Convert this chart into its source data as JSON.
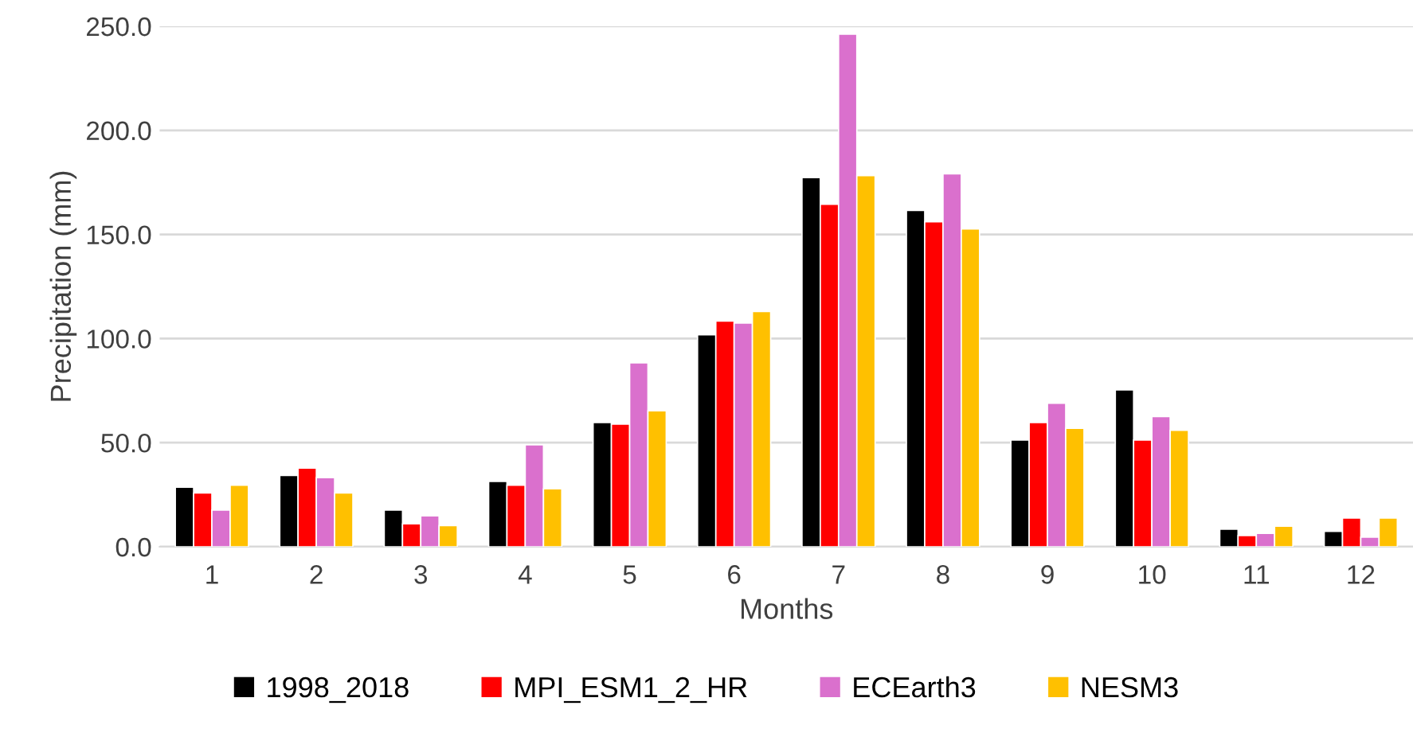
{
  "chart_data": {
    "type": "bar",
    "xlabel": "Months",
    "ylabel": "Precipitation (mm)",
    "categories": [
      "1",
      "2",
      "3",
      "4",
      "5",
      "6",
      "7",
      "8",
      "9",
      "10",
      "11",
      "12"
    ],
    "series": [
      {
        "name": "1998_2018",
        "color": "#000000",
        "values": [
          28.6,
          34.2,
          17.6,
          31.4,
          59.7,
          101.8,
          177.3,
          161.5,
          51.3,
          75.3,
          8.4,
          7.4
        ]
      },
      {
        "name": "MPI_ESM1_2_HR",
        "color": "#ff0000",
        "values": [
          25.8,
          37.8,
          11.0,
          29.6,
          58.9,
          108.4,
          164.5,
          156.1,
          59.7,
          51.3,
          5.4,
          13.8
        ]
      },
      {
        "name": "ECEarth3",
        "color": "#da70cd",
        "values": [
          17.6,
          33.2,
          14.8,
          49.0,
          88.3,
          107.4,
          246.2,
          179.1,
          68.9,
          62.5,
          6.4,
          4.6
        ]
      },
      {
        "name": "NESM3",
        "color": "#ffc000",
        "values": [
          29.6,
          25.8,
          10.2,
          27.8,
          65.3,
          113.0,
          178.3,
          152.6,
          56.9,
          55.9,
          9.9,
          13.8
        ]
      }
    ],
    "ylim": [
      0,
      250
    ],
    "yticks": [
      {
        "value": 0,
        "label": "0.0"
      },
      {
        "value": 50,
        "label": "50.0"
      },
      {
        "value": 100,
        "label": "100.0"
      },
      {
        "value": 150,
        "label": "150.0"
      },
      {
        "value": 200,
        "label": "200.0"
      },
      {
        "value": 250,
        "label": "250.0"
      }
    ],
    "grid": "y",
    "legend": "bottom"
  }
}
